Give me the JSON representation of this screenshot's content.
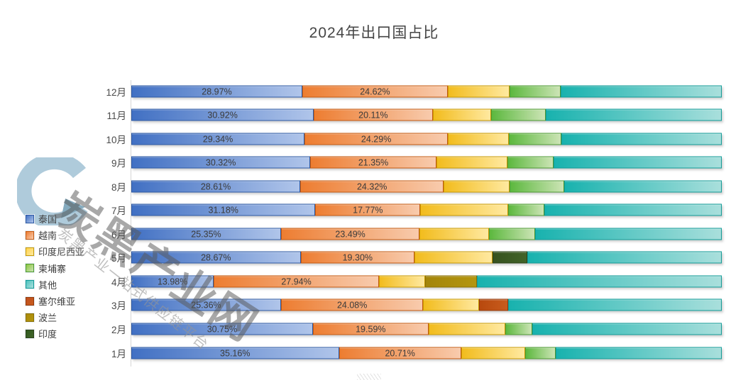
{
  "title": "2024年出口国占比",
  "watermark": {
    "logo": "C-ring-logo",
    "main_text": "炭黑产业网",
    "sub_text": "炭黑产业一站式供应链平台"
  },
  "legend": {
    "position": "left",
    "items": [
      "泰国",
      "越南",
      "印度尼西亚",
      "柬埔寨",
      "其他",
      "塞尔维亚",
      "波兰",
      "印度"
    ]
  },
  "series_colors": {
    "泰国": {
      "from": "#4170c3",
      "to": "#b0c5ea",
      "border": "#2e5aa4",
      "swatch": "#4472c4"
    },
    "越南": {
      "from": "#ed7d31",
      "to": "#f8cbad",
      "border": "#c55a11",
      "swatch": "#ed7d31"
    },
    "印度尼西亚": {
      "from": "#f2bc1d",
      "to": "#ffe9a0",
      "border": "#c99a02",
      "swatch": "#ffd34d"
    },
    "柬埔寨": {
      "from": "#5cb83e",
      "to": "#cce4b5",
      "border": "#4e9a33",
      "swatch": "#8cc63f"
    },
    "其他": {
      "from": "#18b2ae",
      "to": "#a9dfdc",
      "border": "#119b97",
      "swatch": "#4ec3c0"
    },
    "塞尔维亚": {
      "from": "#b8490e",
      "to": "#c85c1d",
      "border": "#943a0a",
      "swatch": "#c0501f"
    },
    "波兰": {
      "from": "#a3850a",
      "to": "#b4960f",
      "border": "#8a7006",
      "swatch": "#ab8b0a"
    },
    "印度": {
      "from": "#36511f",
      "to": "#426429",
      "border": "#2c431a",
      "swatch": "#2f5a1f"
    }
  },
  "chart_data": {
    "type": "bar",
    "stacked": true,
    "orientation": "horizontal",
    "unit": "%",
    "xlim": [
      0,
      100
    ],
    "grid": false,
    "legend_position": "left",
    "categories": [
      "12月",
      "11月",
      "10月",
      "9月",
      "8月",
      "7月",
      "6月",
      "5月",
      "4月",
      "3月",
      "2月",
      "1月"
    ],
    "series_legend": [
      "泰国",
      "越南",
      "印度尼西亚",
      "柬埔寨",
      "其他",
      "塞尔维亚",
      "波兰",
      "印度"
    ],
    "note": "values with a label key are printed on the chart; unlabeled values estimated from segment widths",
    "rows": [
      {
        "month": "12月",
        "segments": [
          {
            "name": "泰国",
            "value": 28.97,
            "label": "28.97%"
          },
          {
            "name": "越南",
            "value": 24.62,
            "label": "24.62%"
          },
          {
            "name": "印度尼西亚",
            "value": 10.46
          },
          {
            "name": "柬埔寨",
            "value": 8.65
          },
          {
            "name": "其他",
            "value": 27.3
          }
        ]
      },
      {
        "month": "11月",
        "segments": [
          {
            "name": "泰国",
            "value": 30.92,
            "label": "30.92%"
          },
          {
            "name": "越南",
            "value": 20.11,
            "label": "20.11%"
          },
          {
            "name": "印度尼西亚",
            "value": 9.86
          },
          {
            "name": "柬埔寨",
            "value": 9.26
          },
          {
            "name": "其他",
            "value": 29.85
          }
        ]
      },
      {
        "month": "10月",
        "segments": [
          {
            "name": "泰国",
            "value": 29.34,
            "label": "29.34%"
          },
          {
            "name": "越南",
            "value": 24.29,
            "label": "24.29%"
          },
          {
            "name": "印度尼西亚",
            "value": 10.34
          },
          {
            "name": "柬埔寨",
            "value": 8.89
          },
          {
            "name": "其他",
            "value": 27.14
          }
        ]
      },
      {
        "month": "9月",
        "segments": [
          {
            "name": "泰国",
            "value": 30.32,
            "label": "30.32%"
          },
          {
            "name": "越南",
            "value": 21.35,
            "label": "21.35%"
          },
          {
            "name": "印度尼西亚",
            "value": 12.02
          },
          {
            "name": "柬埔寨",
            "value": 7.81
          },
          {
            "name": "其他",
            "value": 28.5
          }
        ]
      },
      {
        "month": "8月",
        "segments": [
          {
            "name": "泰国",
            "value": 28.61,
            "label": "28.61%"
          },
          {
            "name": "越南",
            "value": 24.32,
            "label": "24.32%"
          },
          {
            "name": "印度尼西亚",
            "value": 11.18
          },
          {
            "name": "柬埔寨",
            "value": 9.26
          },
          {
            "name": "其他",
            "value": 26.63
          }
        ]
      },
      {
        "month": "7月",
        "segments": [
          {
            "name": "泰国",
            "value": 31.18,
            "label": "31.18%"
          },
          {
            "name": "越南",
            "value": 17.77,
            "label": "17.77%"
          },
          {
            "name": "印度尼西亚",
            "value": 14.9
          },
          {
            "name": "柬埔寨",
            "value": 6.13
          },
          {
            "name": "其他",
            "value": 30.02
          }
        ]
      },
      {
        "month": "6月",
        "segments": [
          {
            "name": "泰国",
            "value": 25.35,
            "label": "25.35%"
          },
          {
            "name": "越南",
            "value": 23.49,
            "label": "23.49%"
          },
          {
            "name": "印度尼西亚",
            "value": 11.78
          },
          {
            "name": "柬埔寨",
            "value": 7.81
          },
          {
            "name": "其他",
            "value": 31.57
          }
        ]
      },
      {
        "month": "5月",
        "segments": [
          {
            "name": "泰国",
            "value": 28.67,
            "label": "28.67%"
          },
          {
            "name": "越南",
            "value": 19.3,
            "label": "19.30%"
          },
          {
            "name": "印度尼西亚",
            "value": 13.15
          },
          {
            "name": "印度",
            "value": 5.89
          },
          {
            "name": "其他",
            "value": 32.99
          }
        ]
      },
      {
        "month": "4月",
        "segments": [
          {
            "name": "泰国",
            "value": 13.98,
            "label": "13.98%"
          },
          {
            "name": "越南",
            "value": 27.94,
            "label": "27.94%"
          },
          {
            "name": "印度尼西亚",
            "value": 7.81
          },
          {
            "name": "波兰",
            "value": 8.77
          },
          {
            "name": "其他",
            "value": 41.5
          }
        ]
      },
      {
        "month": "3月",
        "segments": [
          {
            "name": "泰国",
            "value": 25.36,
            "label": "25.36%"
          },
          {
            "name": "越南",
            "value": 24.08,
            "label": "24.08%"
          },
          {
            "name": "印度尼西亚",
            "value": 9.5
          },
          {
            "name": "塞尔维亚",
            "value": 4.93
          },
          {
            "name": "其他",
            "value": 36.13
          }
        ]
      },
      {
        "month": "2月",
        "segments": [
          {
            "name": "泰国",
            "value": 30.75,
            "label": "30.75%"
          },
          {
            "name": "越南",
            "value": 19.59,
            "label": "19.59%"
          },
          {
            "name": "印度尼西亚",
            "value": 12.98
          },
          {
            "name": "柬埔寨",
            "value": 4.57
          },
          {
            "name": "其他",
            "value": 32.11
          }
        ]
      },
      {
        "month": "1月",
        "segments": [
          {
            "name": "泰国",
            "value": 35.16,
            "label": "35.16%"
          },
          {
            "name": "越南",
            "value": 20.71,
            "label": "20.71%"
          },
          {
            "name": "印度尼西亚",
            "value": 10.82
          },
          {
            "name": "柬埔寨",
            "value": 5.17
          },
          {
            "name": "其他",
            "value": 28.14
          }
        ]
      }
    ]
  }
}
